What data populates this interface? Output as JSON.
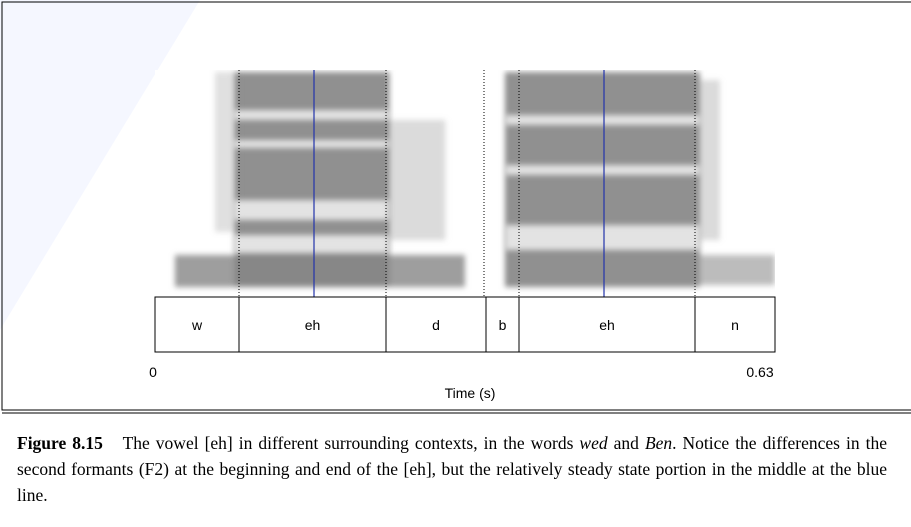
{
  "figure": {
    "segments": [
      "w",
      "eh",
      "d",
      "b",
      "eh",
      "n"
    ],
    "axis": {
      "start": "0",
      "end": "0.63",
      "label": "Time (s)"
    }
  },
  "caption": {
    "label": "Figure 8.15",
    "text_1": "The vowel [eh] in different surrounding contexts, in the words",
    "emph_1": "wed",
    "text_2": "and",
    "emph_2": "Ben",
    "text_3": ". Notice the differences in the second formants (F2) at the beginning and end of the [eh], but the relatively steady state portion in the middle at the blue line."
  }
}
